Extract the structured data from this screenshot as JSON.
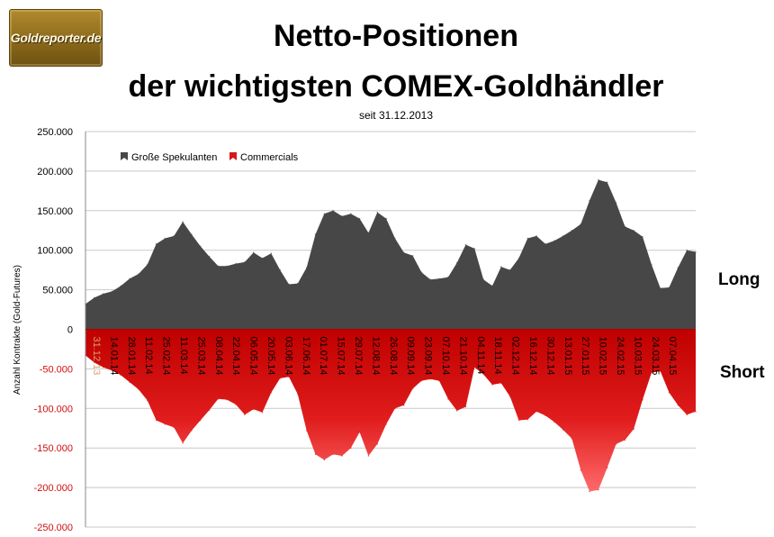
{
  "logo": {
    "text": "Goldreporter.de"
  },
  "chart_data": {
    "type": "area",
    "title_line1": "Netto-Positionen",
    "title_line2": "der wichtigsten COMEX-Goldhändler",
    "subtitle": "seit 31.12.2013",
    "ylabel": "Anzahl Kontrakte  (Gold-Futures)",
    "ylim": [
      -250000,
      250000
    ],
    "y_ticks": [
      {
        "value": 250000,
        "label": "250.000"
      },
      {
        "value": 200000,
        "label": "200.000"
      },
      {
        "value": 150000,
        "label": "150.000"
      },
      {
        "value": 100000,
        "label": "100.000"
      },
      {
        "value": 50000,
        "label": "50.000"
      },
      {
        "value": 0,
        "label": "0"
      },
      {
        "value": -50000,
        "label": "-50.000"
      },
      {
        "value": -100000,
        "label": "-100.000"
      },
      {
        "value": -150000,
        "label": "-150.000"
      },
      {
        "value": -200000,
        "label": "-200.000"
      },
      {
        "value": -250000,
        "label": "-250.000"
      }
    ],
    "grid": true,
    "legend_position": "top-left",
    "x_tick_labels": [
      "31.12.13",
      "14.01.14",
      "28.01.14",
      "11.02.14",
      "25.02.14",
      "11.03.14",
      "25.03.14",
      "08.04.14",
      "22.04.14",
      "06.05.14",
      "20.05.14",
      "03.06.14",
      "17.06.14",
      "01.07.14",
      "15.07.14",
      "29.07.14",
      "12.08.14",
      "26.08.14",
      "09.09.14",
      "23.09.14",
      "07.10.14",
      "21.10.14",
      "04.11.14",
      "18.11.14",
      "02.12.14",
      "16.12.14",
      "30.12.14",
      "13.01.15",
      "27.01.15",
      "10.02.15",
      "24.02.15",
      "10.03.15",
      "24.03.15",
      "07.04.15"
    ],
    "series": [
      {
        "name": "Große Spekulanten",
        "color": "#474747",
        "values": [
          32000,
          40000,
          45000,
          48000,
          55000,
          64000,
          70000,
          82000,
          108000,
          115000,
          118000,
          136000,
          120000,
          105000,
          92000,
          80000,
          80000,
          83000,
          85000,
          97000,
          90000,
          96000,
          75000,
          57000,
          58000,
          78000,
          120000,
          146000,
          150000,
          143000,
          146000,
          140000,
          122000,
          148000,
          140000,
          115000,
          97000,
          93000,
          72000,
          63000,
          64000,
          66000,
          84000,
          107000,
          102000,
          63000,
          55000,
          79000,
          75000,
          90000,
          115000,
          118000,
          108000,
          112000,
          118000,
          125000,
          133000,
          163000,
          189000,
          186000,
          160000,
          130000,
          125000,
          117000,
          82000,
          52000,
          53000,
          78000,
          100000,
          98000
        ]
      },
      {
        "name": "Commercials",
        "color": "#d81818",
        "values": [
          -33000,
          -42000,
          -48000,
          -52000,
          -58000,
          -67000,
          -76000,
          -90000,
          -115000,
          -120000,
          -124000,
          -144000,
          -128000,
          -115000,
          -102000,
          -88000,
          -89000,
          -95000,
          -108000,
          -101000,
          -105000,
          -80000,
          -62000,
          -60000,
          -82000,
          -128000,
          -158000,
          -165000,
          -158000,
          -160000,
          -150000,
          -130000,
          -160000,
          -145000,
          -120000,
          -100000,
          -96000,
          -75000,
          -65000,
          -63000,
          -65000,
          -88000,
          -103000,
          -98000,
          -48000,
          -57000,
          -70000,
          -68000,
          -85000,
          -115000,
          -114000,
          -104000,
          -109000,
          -117000,
          -127000,
          -138000,
          -178000,
          -205000,
          -203000,
          -175000,
          -145000,
          -140000,
          -126000,
          -89000,
          -55000,
          -53000,
          -80000,
          -96000,
          -108000,
          -104000
        ]
      }
    ],
    "annotations": [
      {
        "text": "Long",
        "color": "#000000"
      },
      {
        "text": "Short",
        "color": "#d01010"
      }
    ]
  }
}
